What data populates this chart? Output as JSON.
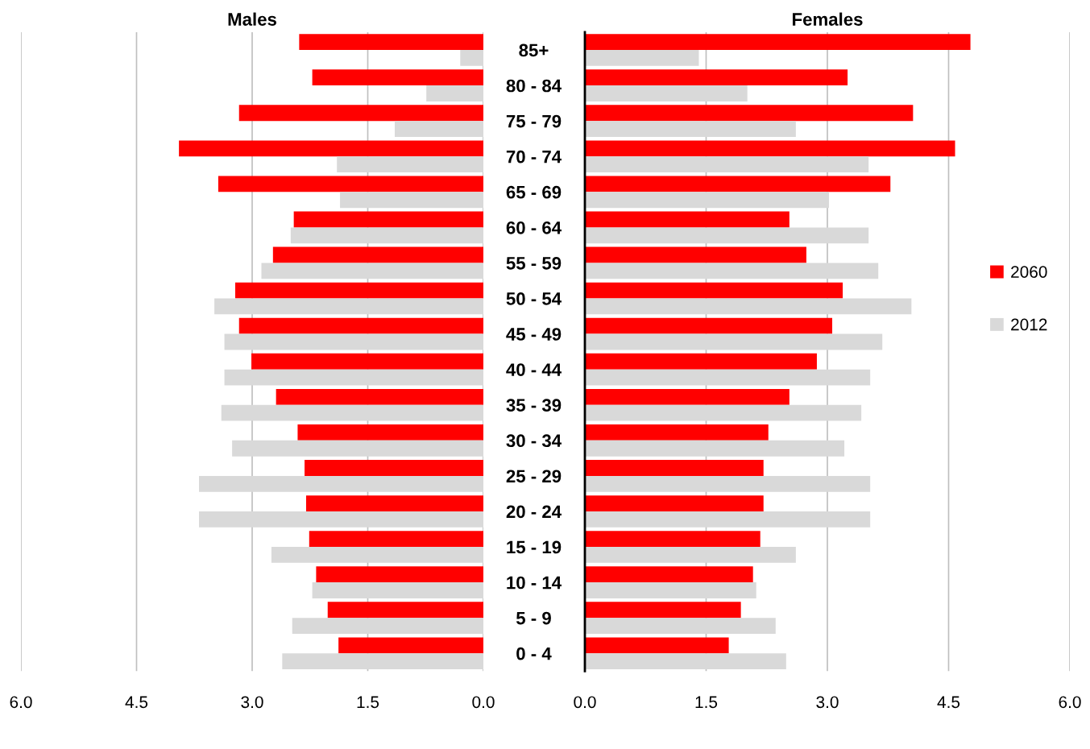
{
  "chart_data": [
    {
      "type": "bar",
      "orientation": "horizontal",
      "title": "Males",
      "categories": [
        "85+",
        "80 - 84",
        "75 - 79",
        "70 - 74",
        "65 - 69",
        "60 - 64",
        "55 - 59",
        "50 - 54",
        "45 - 49",
        "40 - 44",
        "35 - 39",
        "30 - 34",
        "25 - 29",
        "20 - 24",
        "15 - 19",
        "10 - 14",
        "5 - 9",
        "0 - 4"
      ],
      "series": [
        {
          "name": "2060",
          "color": "#ff0000",
          "values": [
            2.39,
            2.22,
            3.17,
            3.95,
            3.44,
            2.46,
            2.73,
            3.22,
            3.17,
            3.01,
            2.69,
            2.41,
            2.32,
            2.3,
            2.26,
            2.17,
            2.02,
            1.88
          ]
        },
        {
          "name": "2012",
          "color": "#d9d9d9",
          "values": [
            0.3,
            0.74,
            1.15,
            1.9,
            1.86,
            2.5,
            2.88,
            3.49,
            3.36,
            3.36,
            3.4,
            3.26,
            3.69,
            3.69,
            2.75,
            2.22,
            2.48,
            2.61
          ]
        }
      ],
      "xlim": [
        6,
        0
      ],
      "xticks": [
        {
          "value": 6,
          "label": "6.0"
        },
        {
          "value": 4.5,
          "label": "4.5"
        },
        {
          "value": 3,
          "label": "3.0"
        },
        {
          "value": 1.5,
          "label": "1.5"
        },
        {
          "value": 0,
          "label": "0.0"
        }
      ],
      "grid": "x",
      "legend": "right"
    },
    {
      "type": "bar",
      "orientation": "horizontal",
      "title": "Females",
      "categories": [
        null,
        null,
        null,
        null,
        null,
        null,
        null,
        null,
        null,
        null,
        null,
        null,
        null,
        null,
        null,
        null,
        null,
        null
      ],
      "series": [
        {
          "name": "2060",
          "color": "#ff0000",
          "values": [
            4.77,
            3.25,
            4.06,
            4.58,
            3.78,
            2.53,
            2.74,
            3.19,
            3.06,
            2.87,
            2.53,
            2.27,
            2.21,
            2.21,
            2.17,
            2.08,
            1.93,
            1.78
          ]
        },
        {
          "name": "2012",
          "color": "#d9d9d9",
          "values": [
            1.41,
            2.01,
            2.61,
            3.51,
            3.02,
            3.51,
            3.63,
            4.04,
            3.68,
            3.53,
            3.42,
            3.21,
            3.53,
            3.53,
            2.61,
            2.12,
            2.36,
            2.49
          ]
        }
      ],
      "xlim": [
        0,
        6
      ],
      "xticks": [
        {
          "value": 0,
          "label": "0.0"
        },
        {
          "value": 1.5,
          "label": "1.5"
        },
        {
          "value": 3,
          "label": "3.0"
        },
        {
          "value": 4.5,
          "label": "4.5"
        },
        {
          "value": 6,
          "label": "6.0"
        }
      ],
      "grid": "x",
      "tick_labels": "x"
    }
  ]
}
